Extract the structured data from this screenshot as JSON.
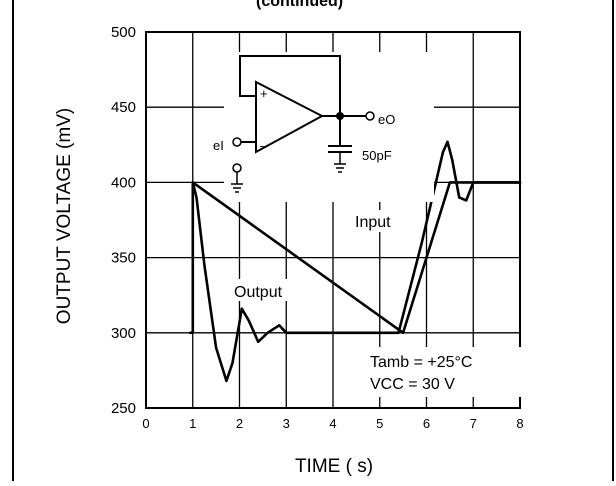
{
  "header_fragment": "(continued)",
  "chart_data": {
    "type": "line",
    "title": "",
    "xlabel": "TIME ( s)",
    "ylabel": "OUTPUT VOLTAGE (mV)",
    "xlim": [
      0,
      8
    ],
    "ylim": [
      250,
      500
    ],
    "x_ticks": [
      "0",
      "1",
      "2",
      "3",
      "4",
      "5",
      "6",
      "7",
      "8"
    ],
    "y_ticks": [
      "500",
      "450",
      "400",
      "350",
      "300",
      "250"
    ],
    "grid": true,
    "series": [
      {
        "name": "Input",
        "x": [
          0.95,
          1.0,
          1.0,
          5.5,
          6.5,
          8.0
        ],
        "y": [
          300,
          300,
          400,
          300,
          400,
          400
        ]
      },
      {
        "name": "Output",
        "x": [
          1.0,
          1.08,
          1.25,
          1.5,
          1.72,
          1.85,
          2.05,
          2.2,
          2.4,
          2.6,
          2.85,
          3.0,
          5.4,
          5.9,
          6.2,
          6.35,
          6.45,
          6.55,
          6.7,
          6.85,
          7.0,
          8.0
        ],
        "y": [
          400,
          390,
          345,
          290,
          268,
          280,
          316,
          308,
          294,
          300,
          305,
          300,
          300,
          360,
          400,
          420,
          427,
          415,
          390,
          388,
          400,
          400
        ]
      }
    ],
    "annotations": {
      "input_label": "Input",
      "output_label": "Output",
      "tamb_label": "Tamb = +25°C",
      "vcc_label": "VCC = 30 V",
      "circuit_input": "eI",
      "circuit_output": "eO",
      "circuit_cap": "50pF",
      "opamp_plus": "+",
      "opamp_minus": "–"
    }
  }
}
